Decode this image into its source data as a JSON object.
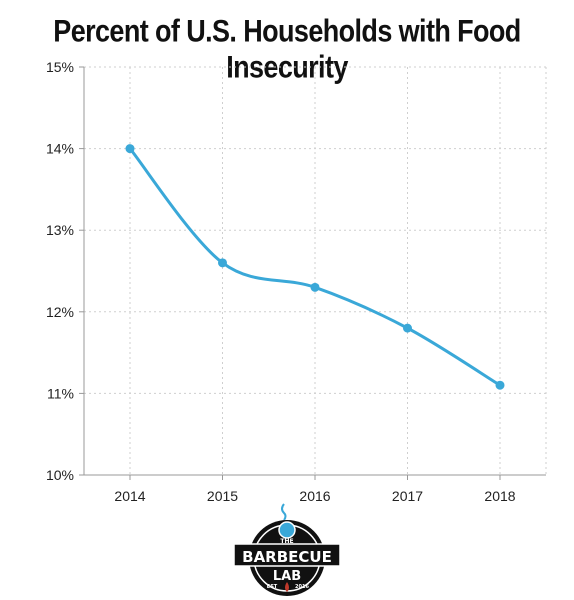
{
  "chart_data": {
    "type": "line",
    "title": "Percent of U.S. Households with Food Insecurity",
    "xlabel": "",
    "ylabel": "",
    "categories": [
      "2014",
      "2015",
      "2016",
      "2017",
      "2018"
    ],
    "series": [
      {
        "values": [
          14.0,
          12.6,
          12.3,
          11.8,
          11.1
        ]
      }
    ],
    "ylim": [
      10,
      15
    ],
    "yticks": [
      10,
      11,
      12,
      13,
      14,
      15
    ],
    "ytick_labels": [
      "10%",
      "11%",
      "12%",
      "13%",
      "14%",
      "15%"
    ],
    "grid": true,
    "line_color": "#3aa8d8"
  },
  "logo": {
    "line1": "THE",
    "line2": "BARBECUE",
    "line3": "LAB",
    "est": "EST",
    "year": "2016"
  }
}
